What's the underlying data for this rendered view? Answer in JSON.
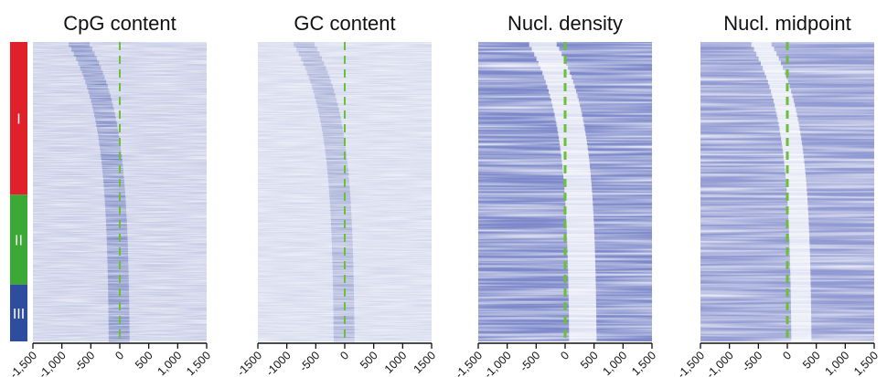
{
  "chart_data": {
    "type": "heatmap",
    "clusters": [
      {
        "label": "I",
        "color": "#e0202a",
        "fraction": 0.51
      },
      {
        "label": "II",
        "color": "#3aa935",
        "fraction": 0.3
      },
      {
        "label": "III",
        "color": "#2f4d9e",
        "fraction": 0.19
      }
    ],
    "reference_line": {
      "x": 0,
      "color": "#6bbf3a",
      "style": "dashed"
    },
    "panels": [
      {
        "title": "CpG content",
        "x_ticks": [
          -1500,
          -1000,
          -500,
          0,
          500,
          1000,
          1500
        ],
        "x_tick_labels": [
          "-1,500",
          "-1,000",
          "-500",
          "0",
          "500",
          "1,000",
          "1,500"
        ],
        "xlim": [
          -1500,
          1500
        ],
        "colormap": [
          "#ffffff",
          "#2a3fa0"
        ]
      },
      {
        "title": "GC content",
        "x_ticks": [
          -1500,
          -1000,
          -500,
          0,
          500,
          1000,
          1500
        ],
        "x_tick_labels": [
          "-1500",
          "-1000",
          "-500",
          "0",
          "500",
          "1000",
          "1500"
        ],
        "xlim": [
          -1500,
          1500
        ],
        "colormap": [
          "#ffffff",
          "#3a4fa8"
        ]
      },
      {
        "title": "Nucl. density",
        "x_ticks": [
          -1500,
          -1000,
          -500,
          0,
          500,
          1000,
          1500
        ],
        "x_tick_labels": [
          "-1,500",
          "-1,000",
          "-500",
          "0",
          "500",
          "1,000",
          "1,500"
        ],
        "xlim": [
          -1500,
          1500
        ],
        "colormap": [
          "#ffffff",
          "#3d4fb0"
        ]
      },
      {
        "title": "Nucl. midpoint",
        "x_ticks": [
          -1500,
          -1000,
          -500,
          0,
          500,
          1000,
          1500
        ],
        "x_tick_labels": [
          "-1,500",
          "-1,000",
          "-500",
          "0",
          "500",
          "1,000",
          "1,500"
        ],
        "xlim": [
          -1500,
          1500
        ],
        "colormap": [
          "#ffffff",
          "#4453b3"
        ]
      }
    ]
  }
}
